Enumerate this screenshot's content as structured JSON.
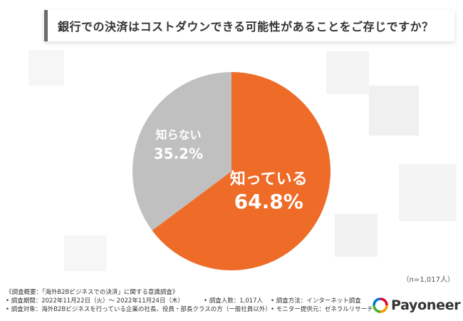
{
  "header": {
    "title": "銀行での決済はコストダウンできる可能性があることをご存じですか？"
  },
  "chart_data": {
    "type": "pie",
    "title": "銀行での決済はコストダウンできる可能性があることをご存じですか？",
    "slices": [
      {
        "label": "知っている",
        "value": 64.8,
        "value_label": "64.8%",
        "color": "#ee6b28",
        "text_color": "#ffffff"
      },
      {
        "label": "知らない",
        "value": 35.2,
        "value_label": "35.2%",
        "color": "#c0c0c0",
        "text_color": "#ffffff"
      }
    ],
    "start_angle": "12 o'clock",
    "direction": "clockwise"
  },
  "sample_note": "（n=1,017人）",
  "footer": {
    "survey_title": "《調査概要：「海外B2Bビジネスでの決済」に関する意識調査》",
    "period": "• 調査期間：2022年11月22日（火）～ 2022年11月24日（木）",
    "respondents": "• 調査人数：1,017人",
    "method": "• 調査方法：インターネット調査",
    "target": "• 調査対象：海外B2Bビジネスを行っている企業の社長、役員・部長クラスの方（一般社員以外）",
    "provider": "• モニター提供元：ゼネラルリサーチ"
  },
  "logo": {
    "text": "Payoneer",
    "colors": [
      "#e4002b",
      "#ff9900",
      "#0073cf",
      "#43b02a"
    ]
  }
}
